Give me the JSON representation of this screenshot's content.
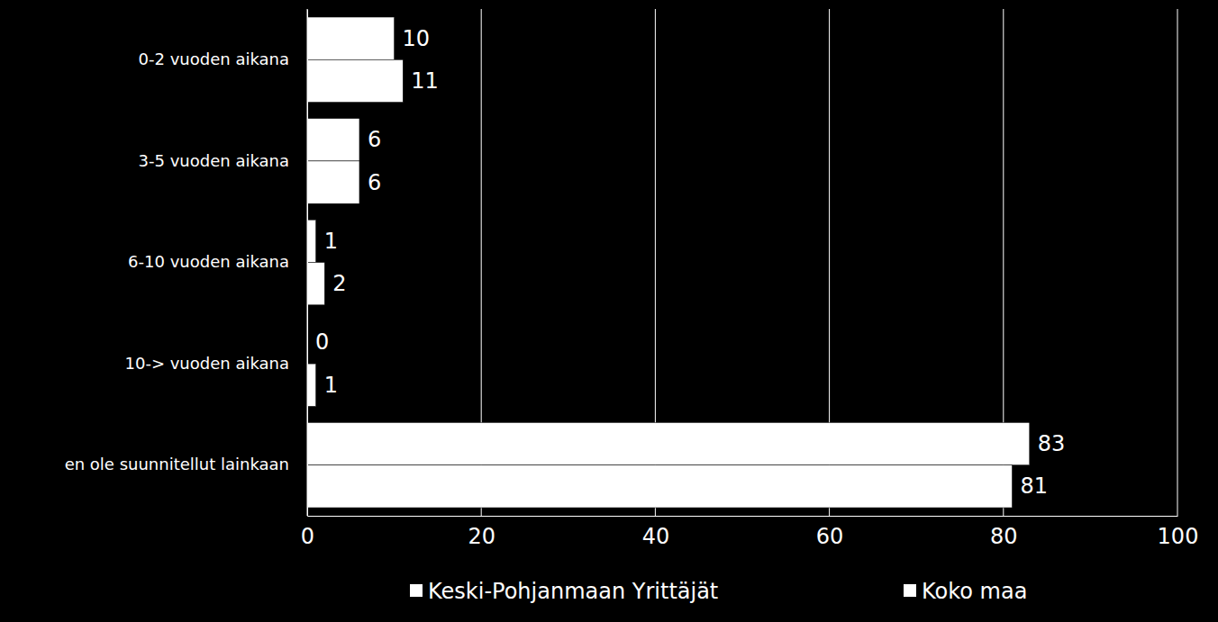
{
  "chart_data": {
    "type": "bar",
    "orientation": "horizontal",
    "categories": [
      "0-2 vuoden aikana",
      "3-5 vuoden aikana",
      "6-10 vuoden aikana",
      "10-> vuoden aikana",
      "en ole suunnitellut  lainkaan"
    ],
    "series": [
      {
        "name": "Keski-Pohjanmaan Yrittäjät",
        "color": "#ffffff",
        "values": [
          10,
          6,
          1,
          0,
          83
        ]
      },
      {
        "name": "Koko maa",
        "color": "#ffffff",
        "values": [
          11,
          6,
          2,
          1,
          81
        ]
      }
    ],
    "xlim": [
      0,
      100
    ],
    "xticks": [
      0,
      20,
      40,
      60,
      80,
      100
    ],
    "grid": true,
    "data_labels": true,
    "legend": "bottom"
  }
}
